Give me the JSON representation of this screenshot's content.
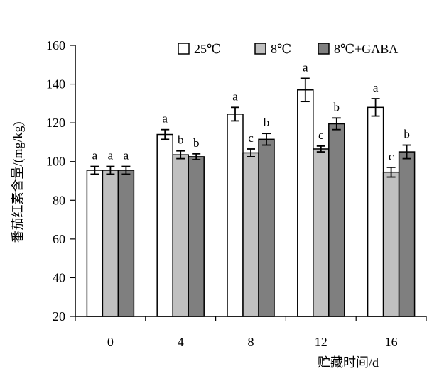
{
  "chart_data": {
    "type": "bar",
    "title": "",
    "xlabel": "贮藏时间/d",
    "ylabel": "番茄红素含量/(mg/kg)",
    "ylim": [
      20,
      160
    ],
    "yticks": [
      20,
      40,
      60,
      80,
      100,
      120,
      140,
      160
    ],
    "categories": [
      "0",
      "4",
      "8",
      "12",
      "16"
    ],
    "legend_position": "top-right",
    "grid": false,
    "series": [
      {
        "name": "25℃",
        "color": "#ffffff",
        "values": [
          95.5,
          114,
          124.5,
          137,
          128
        ],
        "errors": [
          2,
          2.5,
          3.5,
          6,
          4.5
        ],
        "labels": [
          "a",
          "a",
          "a",
          "a",
          "a"
        ]
      },
      {
        "name": "8℃",
        "color": "#c0c0c0",
        "values": [
          95.5,
          103.5,
          104.5,
          106.5,
          94.5
        ],
        "errors": [
          2,
          2,
          2,
          1.5,
          2.5
        ],
        "labels": [
          "a",
          "b",
          "c",
          "c",
          "c"
        ]
      },
      {
        "name": "8℃+GABA",
        "color": "#7f7f7f",
        "values": [
          95.5,
          102.5,
          111.5,
          119.5,
          105
        ],
        "errors": [
          2,
          1.5,
          3,
          3,
          3.5
        ],
        "labels": [
          "a",
          "b",
          "b",
          "b",
          "b"
        ]
      }
    ]
  }
}
